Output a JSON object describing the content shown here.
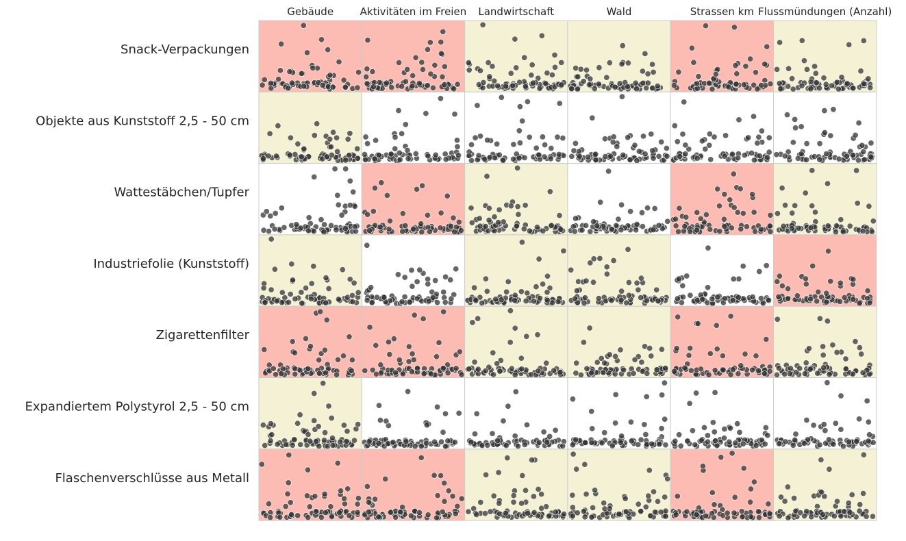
{
  "chart_data": {
    "type": "scatter",
    "title": "",
    "columns": [
      "Gebäude",
      "Aktivitäten im Freien",
      "Landwirtschaft",
      "Wald",
      "Strassen km",
      "Flussmündungen (Anzahl)"
    ],
    "rows": [
      "Snack-Verpackungen",
      "Objekte aus Kunststoff 2,5 - 50 cm",
      "Wattestäbchen/Tupfer",
      "Industriefolie (Kunststoff)",
      "Zigarettenfilter",
      "Expandiertem Polystyrol 2,5 - 50 cm",
      "Flaschenverschlüsse aus Metall"
    ],
    "cell_colors": {
      "salmon": "#fcbcb4",
      "beige": "#f5f1d5",
      "white": "#ffffff"
    },
    "cell_backgrounds": [
      [
        "salmon",
        "salmon",
        "beige",
        "beige",
        "salmon",
        "beige"
      ],
      [
        "beige",
        "white",
        "white",
        "white",
        "white",
        "white"
      ],
      [
        "white",
        "salmon",
        "beige",
        "white",
        "salmon",
        "beige"
      ],
      [
        "beige",
        "white",
        "beige",
        "beige",
        "white",
        "salmon"
      ],
      [
        "salmon",
        "salmon",
        "beige",
        "beige",
        "salmon",
        "beige"
      ],
      [
        "beige",
        "white",
        "white",
        "white",
        "white",
        "white"
      ],
      [
        "salmon",
        "salmon",
        "beige",
        "beige",
        "salmon",
        "beige"
      ]
    ],
    "x_range": [
      0,
      1
    ],
    "y_range": [
      0,
      1
    ],
    "grid": false,
    "point_color": "#333333"
  }
}
